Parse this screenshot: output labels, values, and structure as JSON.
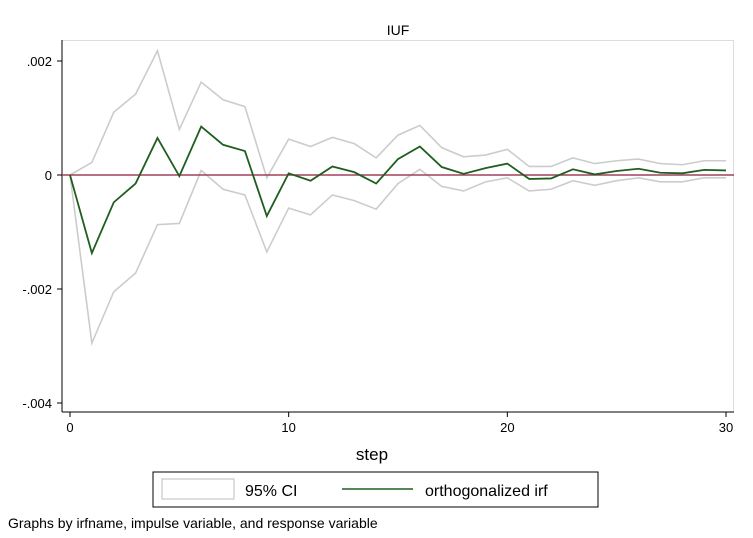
{
  "chart_data": {
    "type": "line",
    "title": "IUF",
    "xlabel": "step",
    "ylabel": "",
    "xlim": [
      0,
      30
    ],
    "ylim": [
      -0.0041,
      0.0024
    ],
    "x_ticks": [
      0,
      10,
      20,
      30
    ],
    "x_tick_labels": [
      "0",
      "10",
      "20",
      "30"
    ],
    "y_ticks": [
      0.002,
      0,
      -0.002,
      -0.004
    ],
    "y_tick_labels": [
      ".002",
      "0",
      "-.002",
      "-.004"
    ],
    "reference_line_y": 0,
    "grid": false,
    "legend_position": "bottom",
    "x": [
      0,
      1,
      2,
      3,
      4,
      5,
      6,
      7,
      8,
      9,
      10,
      11,
      12,
      13,
      14,
      15,
      16,
      17,
      18,
      19,
      20,
      21,
      22,
      23,
      24,
      25,
      26,
      27,
      28,
      29,
      30
    ],
    "series": [
      {
        "name": "95% CI",
        "kind": "band",
        "color": "#cccccc",
        "upper": [
          0,
          0.00022,
          0.0011,
          0.00142,
          0.00218,
          0.0008,
          0.00163,
          0.00132,
          0.0012,
          -5e-05,
          0.00063,
          0.0005,
          0.00066,
          0.00055,
          0.0003,
          0.0007,
          0.00087,
          0.00048,
          0.00032,
          0.00035,
          0.00045,
          0.00015,
          0.00015,
          0.0003,
          0.0002,
          0.00025,
          0.00028,
          0.0002,
          0.00018,
          0.00025,
          0.00025
        ],
        "lower": [
          0,
          -0.00295,
          -0.00205,
          -0.00172,
          -0.00087,
          -0.00085,
          8e-05,
          -0.00025,
          -0.00035,
          -0.00135,
          -0.00058,
          -0.0007,
          -0.00035,
          -0.00045,
          -0.0006,
          -0.00015,
          0.0001,
          -0.0002,
          -0.00028,
          -0.00012,
          -5e-05,
          -0.00028,
          -0.00025,
          -0.0001,
          -0.00018,
          -0.0001,
          -5e-05,
          -0.00012,
          -0.00012,
          -5e-05,
          -5e-05
        ]
      },
      {
        "name": "orthogonalized irf",
        "kind": "line",
        "color": "#1f5e1f",
        "values": [
          0,
          -0.00137,
          -0.00048,
          -0.00015,
          0.00065,
          -2e-05,
          0.00085,
          0.00053,
          0.00042,
          -0.00072,
          3e-05,
          -0.0001,
          0.00015,
          5e-05,
          -0.00015,
          0.00028,
          0.0005,
          0.00014,
          2e-05,
          0.00012,
          0.0002,
          -7e-05,
          -6e-05,
          0.0001,
          1e-05,
          7e-05,
          0.00011,
          4e-05,
          3e-05,
          9e-05,
          8e-05
        ]
      }
    ],
    "colors": {
      "reference_line": "#a0405a",
      "axis": "#000000"
    }
  },
  "note": "Graphs by irfname, impulse variable, and response variable"
}
